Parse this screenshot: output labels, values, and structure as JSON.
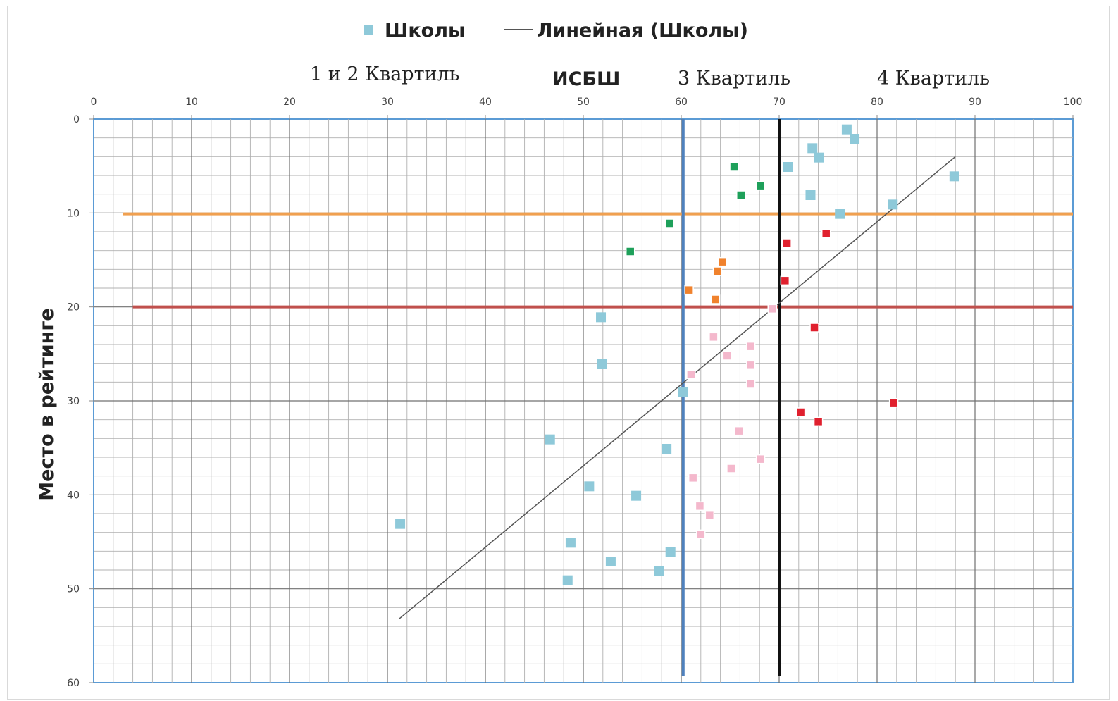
{
  "chart_data": {
    "type": "scatter",
    "title": "",
    "xlabel": "",
    "ylabel": "Место в рейтинге",
    "xlim": [
      0,
      100
    ],
    "ylim": [
      0,
      60
    ],
    "y_inverted": true,
    "x_axis_position": "top",
    "x_ticks": [
      "0",
      "10",
      "20",
      "30",
      "40",
      "50",
      "60",
      "70",
      "80",
      "90",
      "100"
    ],
    "y_ticks": [
      "0",
      "10",
      "20",
      "30",
      "40",
      "50",
      "60"
    ],
    "grid": true,
    "legend": {
      "placement": "top",
      "entries": [
        {
          "label": "Школы",
          "marker": "square",
          "color": "#8ec9d9"
        },
        {
          "label": "Линейная (Школы)",
          "marker": "line",
          "color": "#555555"
        }
      ]
    },
    "annotations": {
      "quartile_12": "1 и 2 Квартиль",
      "isbsh": "ИСБШ",
      "quartile_3": "3 Квартиль",
      "quartile_4": "4 Квартиль"
    },
    "reference_lines": [
      {
        "orientation": "horizontal",
        "value": 10.1,
        "color": "#f0a050",
        "from": 3,
        "to": 100
      },
      {
        "orientation": "horizontal",
        "value": 20.0,
        "color": "#c0504d",
        "from": 4,
        "to": 100
      },
      {
        "orientation": "vertical",
        "value": 60.2,
        "color": "#4f81bd",
        "from": 0,
        "to": 59.3
      },
      {
        "orientation": "vertical",
        "value": 70.0,
        "color": "#111111",
        "from": 0,
        "to": 59.3
      }
    ],
    "trendline": {
      "name": "Линейная (Школы)",
      "x": [
        31.2,
        88.0
      ],
      "y": [
        53.2,
        4.0
      ],
      "color": "#555555"
    },
    "series": [
      {
        "name": "Школы",
        "color": "#8ec9d9",
        "points": [
          [
            76.9,
            1.1
          ],
          [
            77.7,
            2.1
          ],
          [
            73.4,
            3.1
          ],
          [
            74.1,
            4.1
          ],
          [
            70.9,
            5.1
          ],
          [
            73.2,
            8.1
          ],
          [
            87.9,
            6.1
          ],
          [
            76.2,
            10.1
          ],
          [
            81.6,
            9.1
          ],
          [
            51.8,
            21.1
          ],
          [
            51.9,
            26.1
          ],
          [
            60.2,
            29.1
          ],
          [
            46.6,
            34.1
          ],
          [
            58.5,
            35.1
          ],
          [
            50.6,
            39.1
          ],
          [
            55.4,
            40.1
          ],
          [
            31.3,
            43.1
          ],
          [
            48.7,
            45.1
          ],
          [
            58.9,
            46.1
          ],
          [
            52.8,
            47.1
          ],
          [
            57.7,
            48.1
          ],
          [
            48.4,
            49.1
          ]
        ]
      },
      {
        "name": "green",
        "color": "#1ea05a",
        "points": [
          [
            65.4,
            5.1
          ],
          [
            66.1,
            8.1
          ],
          [
            68.1,
            7.1
          ],
          [
            58.8,
            11.1
          ],
          [
            54.8,
            14.1
          ]
        ]
      },
      {
        "name": "orange",
        "color": "#f0822d",
        "points": [
          [
            64.2,
            15.2
          ],
          [
            63.7,
            16.2
          ],
          [
            60.8,
            18.2
          ],
          [
            63.5,
            19.2
          ]
        ]
      },
      {
        "name": "red",
        "color": "#e0202e",
        "points": [
          [
            74.8,
            12.2
          ],
          [
            70.8,
            13.2
          ],
          [
            70.6,
            17.2
          ],
          [
            73.6,
            22.2
          ],
          [
            81.7,
            30.2
          ],
          [
            72.2,
            31.2
          ],
          [
            74.0,
            32.2
          ]
        ]
      },
      {
        "name": "pink",
        "color": "#f4b8cc",
        "points": [
          [
            69.3,
            20.2
          ],
          [
            63.3,
            23.2
          ],
          [
            67.1,
            24.2
          ],
          [
            64.7,
            25.2
          ],
          [
            67.1,
            26.2
          ],
          [
            61.0,
            27.2
          ],
          [
            67.1,
            28.2
          ],
          [
            65.9,
            33.2
          ],
          [
            68.1,
            36.2
          ],
          [
            65.1,
            37.2
          ],
          [
            61.2,
            38.2
          ],
          [
            61.9,
            41.2
          ],
          [
            62.9,
            42.2
          ],
          [
            62.0,
            44.2
          ]
        ]
      }
    ]
  }
}
